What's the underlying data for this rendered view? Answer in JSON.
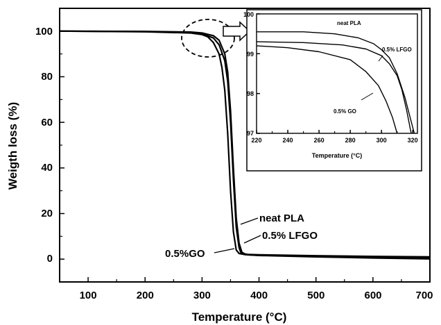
{
  "chart_data": [
    {
      "type": "line",
      "title": "",
      "xlabel": "Temperature (°C)",
      "ylabel": "Weigth loss (%)",
      "xlim": [
        50,
        700
      ],
      "ylim": [
        -10,
        110
      ],
      "x_ticks": [
        "100",
        "200",
        "300",
        "400",
        "500",
        "600",
        "700"
      ],
      "y_ticks": [
        "0",
        "20",
        "40",
        "60",
        "80",
        "100"
      ],
      "grid": false,
      "series": [
        {
          "name": "neat PLA",
          "x": [
            50,
            200,
            280,
            300,
            320,
            330,
            340,
            345,
            350,
            355,
            360,
            365,
            370,
            375,
            380,
            400,
            500,
            600,
            700
          ],
          "y": [
            100,
            99.9,
            99.6,
            99.2,
            98,
            96,
            90,
            82,
            65,
            40,
            18,
            7,
            3,
            2.3,
            2.1,
            1.9,
            1.5,
            1.2,
            1.0
          ]
        },
        {
          "name": "0.5% LFGO",
          "x": [
            50,
            200,
            280,
            300,
            320,
            330,
            340,
            345,
            350,
            355,
            360,
            365,
            368,
            372,
            380,
            400,
            500,
            600,
            700
          ],
          "y": [
            100,
            99.8,
            99.3,
            98.8,
            97,
            94,
            87,
            78,
            60,
            35,
            14,
            5,
            3,
            2.2,
            1.9,
            1.7,
            1.3,
            1.0,
            0.7
          ]
        },
        {
          "name": "0.5% GO",
          "x": [
            50,
            200,
            280,
            300,
            310,
            320,
            330,
            335,
            340,
            345,
            350,
            355,
            360,
            365,
            375,
            400,
            500,
            600,
            700
          ],
          "y": [
            100,
            99.7,
            99.2,
            98.5,
            97.5,
            95,
            90,
            84,
            74,
            55,
            30,
            12,
            4,
            2.5,
            2,
            1.6,
            1.0,
            0.5,
            0.1
          ]
        }
      ],
      "annotations": {
        "neat_pla": "neat PLA",
        "lfgo": "0.5% LFGO",
        "go": "0.5%GO"
      }
    },
    {
      "type": "line",
      "title": "",
      "xlabel": "Temperature (°C)",
      "ylabel": "",
      "xlim": [
        220,
        323
      ],
      "ylim": [
        97,
        100
      ],
      "x_ticks": [
        "220",
        "240",
        "260",
        "280",
        "300",
        "320"
      ],
      "y_ticks": [
        "97",
        "98",
        "99",
        "100"
      ],
      "grid": false,
      "series": [
        {
          "name": "neat PLA",
          "x": [
            220,
            250,
            270,
            285,
            295,
            300,
            305,
            310,
            315,
            318,
            321
          ],
          "y": [
            99.55,
            99.55,
            99.5,
            99.4,
            99.25,
            99.1,
            98.9,
            98.5,
            97.9,
            97.45,
            97.0
          ]
        },
        {
          "name": "0.5% LFGO",
          "x": [
            220,
            250,
            275,
            290,
            300,
            305,
            310,
            313,
            316,
            319
          ],
          "y": [
            99.3,
            99.28,
            99.22,
            99.12,
            98.95,
            98.75,
            98.45,
            98.1,
            97.6,
            97.0
          ]
        },
        {
          "name": "0.5% GO",
          "x": [
            220,
            240,
            260,
            280,
            290,
            298,
            303,
            307,
            310
          ],
          "y": [
            99.2,
            99.15,
            99.05,
            98.85,
            98.55,
            98.2,
            97.8,
            97.4,
            97.0
          ]
        }
      ],
      "annotations": {
        "neat_pla": "neat PLA",
        "lfgo": "0.5% LFGO",
        "go": "0.5% GO"
      }
    }
  ]
}
